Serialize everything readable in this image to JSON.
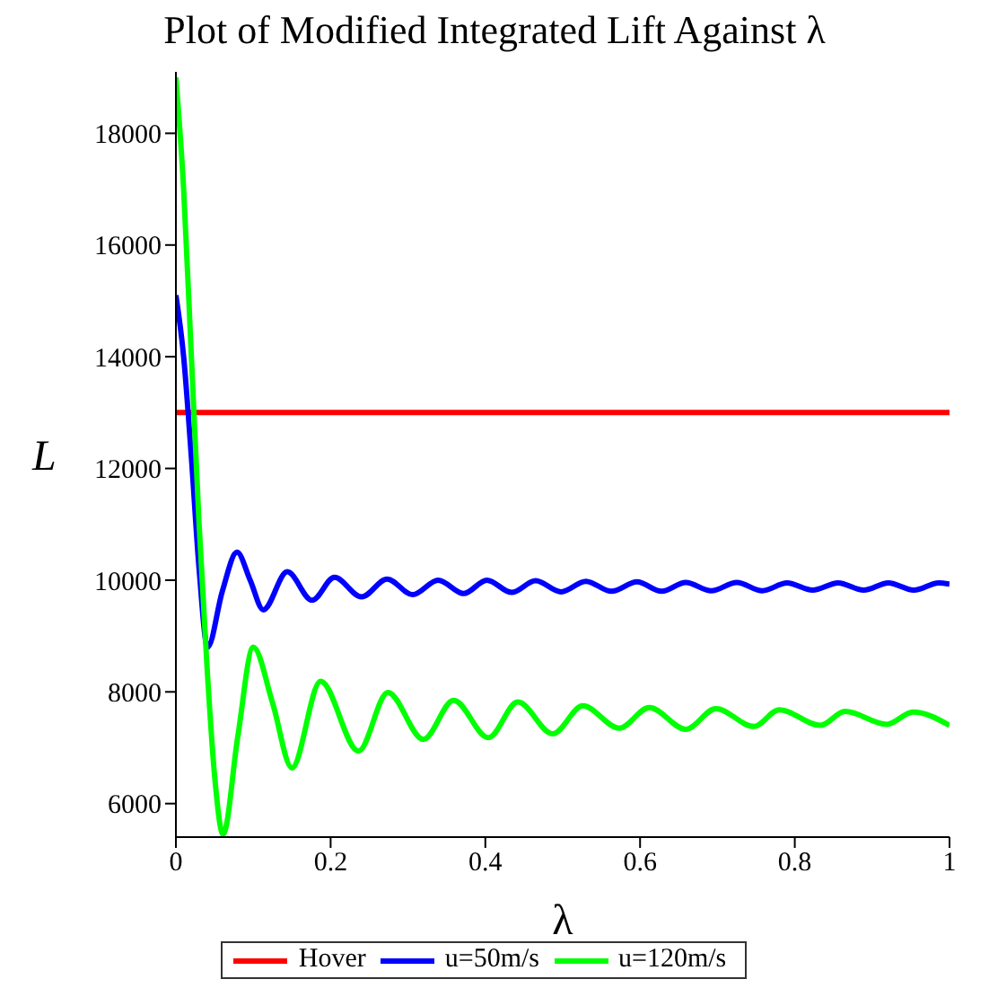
{
  "chart_data": {
    "type": "line",
    "title": "Plot of Modified Integrated Lift Against λ",
    "xlabel": "λ",
    "ylabel": "L",
    "series": [
      {
        "name": "Hover",
        "color": "#ff0000",
        "x": [
          0,
          1
        ],
        "values": [
          13000,
          13000
        ]
      },
      {
        "name": "u=50m/s",
        "color": "#0000ff",
        "x": [
          0,
          0.01,
          0.02,
          0.03,
          0.041,
          0.06,
          0.079,
          0.096,
          0.113,
          0.144,
          0.176,
          0.205,
          0.24,
          0.273,
          0.306,
          0.339,
          0.372,
          0.402,
          0.434,
          0.465,
          0.498,
          0.53,
          0.563,
          0.596,
          0.628,
          0.659,
          0.692,
          0.725,
          0.758,
          0.79,
          0.823,
          0.856,
          0.889,
          0.921,
          0.954,
          0.986,
          1
        ],
        "values": [
          15100,
          14000,
          12200,
          10200,
          8800,
          9800,
          10500,
          10000,
          9470,
          10150,
          9640,
          10050,
          9700,
          10020,
          9740,
          10000,
          9760,
          10000,
          9780,
          9990,
          9790,
          9980,
          9800,
          9970,
          9800,
          9960,
          9810,
          9960,
          9810,
          9950,
          9820,
          9950,
          9820,
          9950,
          9820,
          9950,
          9930
        ]
      },
      {
        "name": "u=120m/s",
        "color": "#00ff00",
        "x": [
          0,
          0.01,
          0.02,
          0.03,
          0.04,
          0.05,
          0.061,
          0.08,
          0.1,
          0.125,
          0.15,
          0.187,
          0.236,
          0.274,
          0.32,
          0.359,
          0.404,
          0.442,
          0.487,
          0.526,
          0.573,
          0.612,
          0.659,
          0.698,
          0.747,
          0.78,
          0.833,
          0.865,
          0.919,
          0.953,
          1
        ],
        "values": [
          19000,
          17000,
          14000,
          11000,
          8500,
          6500,
          5450,
          7200,
          8800,
          7800,
          6640,
          8190,
          6940,
          7990,
          7150,
          7850,
          7180,
          7820,
          7250,
          7750,
          7350,
          7720,
          7330,
          7700,
          7380,
          7680,
          7400,
          7650,
          7420,
          7640,
          7400
        ]
      }
    ],
    "xlim": [
      0,
      1
    ],
    "xticks": [
      0,
      0.2,
      0.4,
      0.6,
      0.8,
      1
    ],
    "ylim": [
      5400,
      19100
    ],
    "yticks": [
      6000,
      8000,
      10000,
      12000,
      14000,
      16000,
      18000
    ],
    "grid": false,
    "legend": "bottom",
    "marker": "none",
    "line_style": "solid"
  }
}
